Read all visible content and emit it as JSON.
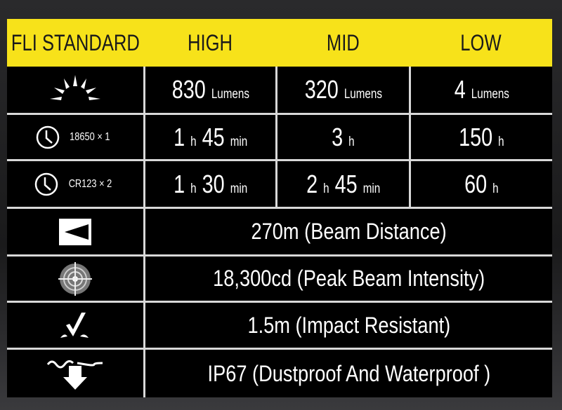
{
  "header": {
    "col0": "FLI STANDARD",
    "col1": "HIGH",
    "col2": "MID",
    "col3": "LOW"
  },
  "colors": {
    "header_bg": "#f7e21a",
    "table_bg": "#000000",
    "text": "#ffffff",
    "grid": "#d8d8d8"
  },
  "rows": [
    {
      "icon": "sun-brightness-icon",
      "cells": [
        {
          "num": "830",
          "unit": "Lumens"
        },
        {
          "num": "320",
          "unit": "Lumens"
        },
        {
          "num": "4",
          "unit": "Lumens"
        }
      ]
    },
    {
      "icon": "clock-icon",
      "label": "18650 × 1",
      "cells": [
        {
          "h": "1",
          "hu": "h",
          "m": "45",
          "mu": "min"
        },
        {
          "h": "3",
          "hu": "h"
        },
        {
          "h": "150",
          "hu": "h"
        }
      ]
    },
    {
      "icon": "clock-icon",
      "label": "CR123 × 2",
      "cells": [
        {
          "h": "1",
          "hu": "h",
          "m": "30",
          "mu": "min"
        },
        {
          "h": "2",
          "hu": "h",
          "m": "45",
          "mu": "min"
        },
        {
          "h": "60",
          "hu": "h"
        }
      ]
    }
  ],
  "specs": [
    {
      "icon": "beam-distance-icon",
      "text": "270m (Beam Distance)"
    },
    {
      "icon": "target-intensity-icon",
      "text": "18,300cd (Peak Beam Intensity)"
    },
    {
      "icon": "impact-resistant-icon",
      "text": "1.5m (Impact Resistant)"
    },
    {
      "icon": "waterproof-icon",
      "text": "IP67 (Dustproof And Waterproof )"
    }
  ]
}
